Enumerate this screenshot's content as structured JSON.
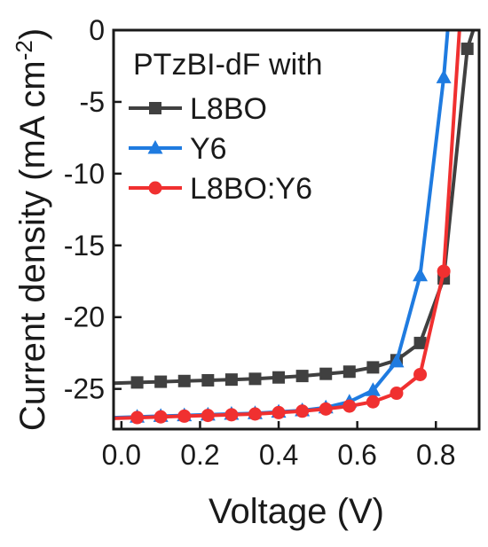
{
  "chart_data": {
    "type": "line",
    "xlabel": "Voltage (V)",
    "ylabel": "Current density (mA cm",
    "ylabel_sup": "-2",
    "ylabel_close": ")",
    "xlim": [
      -0.02,
      0.91
    ],
    "ylim": [
      -27.8,
      0
    ],
    "xticks": [
      0.0,
      0.2,
      0.4,
      0.6,
      0.8
    ],
    "xtick_labels": [
      "0.0",
      "0.2",
      "0.4",
      "0.6",
      "0.8"
    ],
    "yticks": [
      0,
      -5,
      -10,
      -15,
      -20,
      -25
    ],
    "ytick_labels": [
      "0",
      "-5",
      "-10",
      "-15",
      "-20",
      "-25"
    ],
    "legend": {
      "title": "PTzBI-dF with",
      "placement": "top-left"
    },
    "series": [
      {
        "name": "L8BO",
        "color": "#404040",
        "marker": "square",
        "x": [
          -0.02,
          0.04,
          0.1,
          0.16,
          0.22,
          0.28,
          0.34,
          0.4,
          0.46,
          0.52,
          0.58,
          0.64,
          0.7,
          0.76,
          0.82,
          0.88,
          0.895
        ],
        "y": [
          -24.6,
          -24.55,
          -24.5,
          -24.45,
          -24.4,
          -24.35,
          -24.3,
          -24.2,
          -24.1,
          -23.95,
          -23.8,
          -23.5,
          -23.0,
          -21.8,
          -17.3,
          -1.3,
          0
        ]
      },
      {
        "name": "Y6",
        "color": "#1f7be0",
        "marker": "triangle",
        "x": [
          -0.02,
          0.04,
          0.1,
          0.16,
          0.22,
          0.28,
          0.34,
          0.4,
          0.46,
          0.52,
          0.58,
          0.64,
          0.7,
          0.76,
          0.82,
          0.83
        ],
        "y": [
          -27.0,
          -26.95,
          -26.9,
          -26.85,
          -26.8,
          -26.75,
          -26.7,
          -26.6,
          -26.5,
          -26.3,
          -25.9,
          -25.1,
          -23.1,
          -17.1,
          -3.3,
          0
        ]
      },
      {
        "name": "L8BO:Y6",
        "color": "#f03030",
        "marker": "circle",
        "x": [
          -0.02,
          0.04,
          0.1,
          0.16,
          0.22,
          0.28,
          0.34,
          0.4,
          0.46,
          0.52,
          0.58,
          0.64,
          0.7,
          0.76,
          0.82,
          0.86
        ],
        "y": [
          -27.05,
          -27.0,
          -26.95,
          -26.9,
          -26.85,
          -26.8,
          -26.75,
          -26.65,
          -26.55,
          -26.4,
          -26.2,
          -25.9,
          -25.3,
          -24.0,
          -16.8,
          0
        ]
      }
    ]
  }
}
